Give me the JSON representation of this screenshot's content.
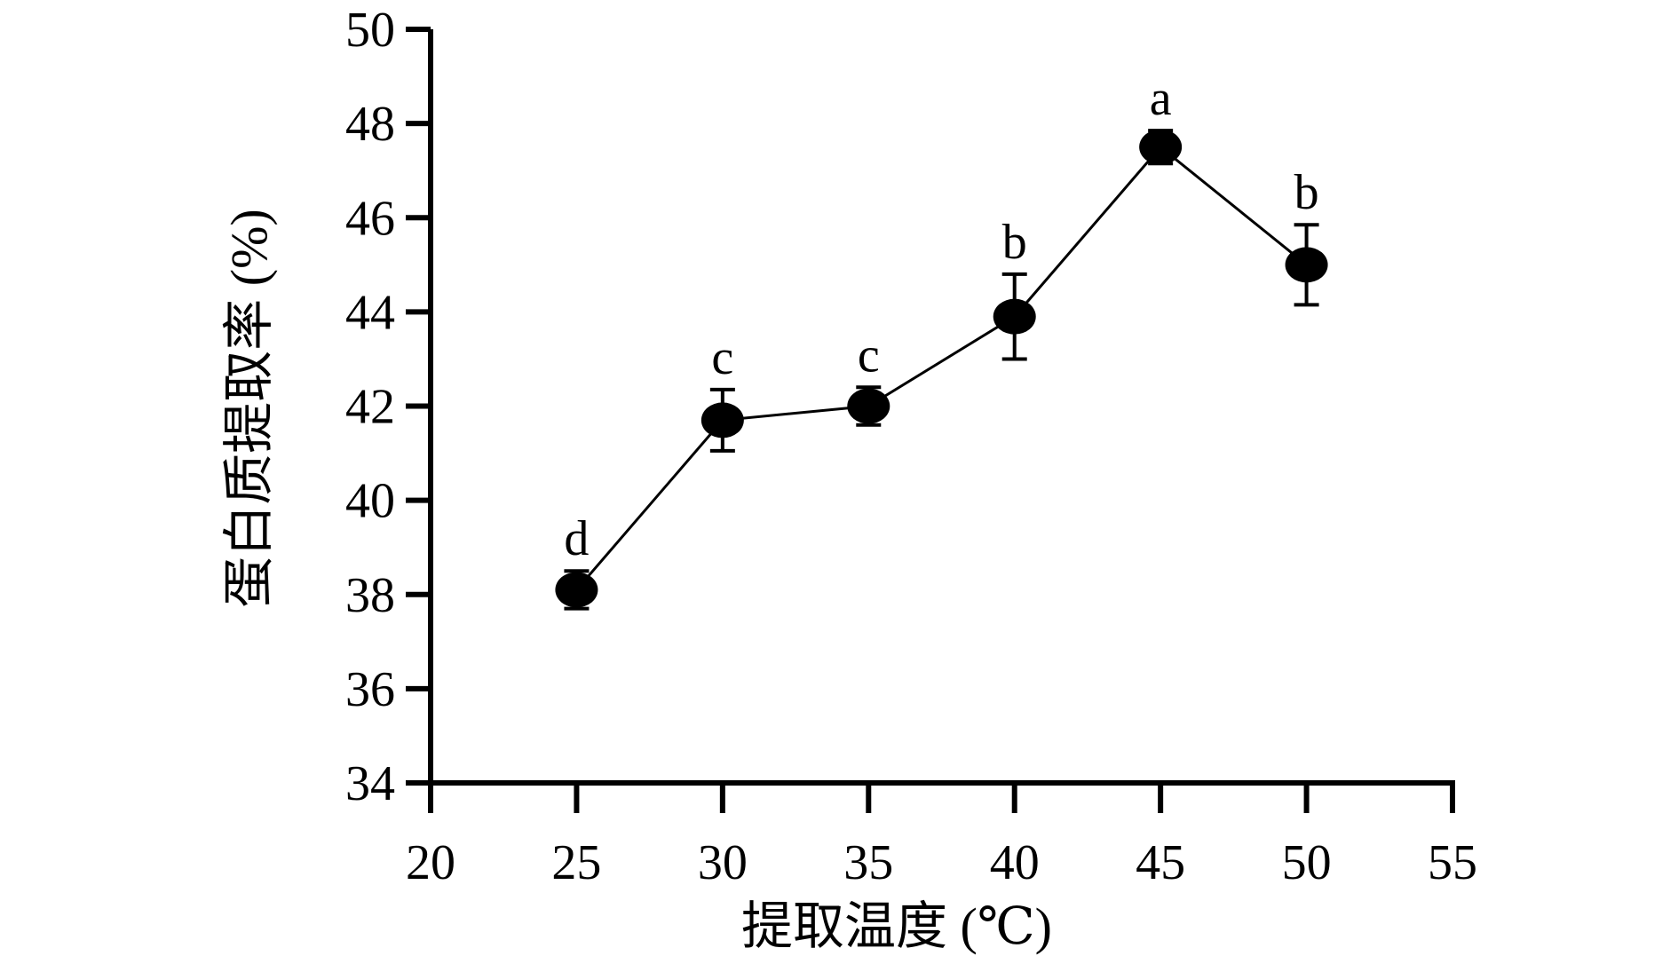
{
  "chart_data": {
    "type": "line",
    "title": "",
    "xlabel": "提取温度 (℃)",
    "ylabel": "蛋白质提取率 (%)",
    "xlim": [
      20,
      55
    ],
    "ylim": [
      34,
      50
    ],
    "xticks": [
      20,
      25,
      30,
      35,
      40,
      45,
      50,
      55
    ],
    "yticks": [
      34,
      36,
      38,
      40,
      42,
      44,
      46,
      48,
      50
    ],
    "grid": false,
    "legend": "none",
    "colors": {
      "line": "#000000",
      "marker": "#000000"
    },
    "series": [
      {
        "x": [
          25,
          30,
          35,
          40,
          45,
          50
        ],
        "y": [
          38.1,
          41.7,
          42.0,
          43.9,
          47.5,
          45.0
        ],
        "error": [
          0.4,
          0.65,
          0.4,
          0.9,
          0.35,
          0.85
        ],
        "labels": [
          "d",
          "c",
          "c",
          "b",
          "a",
          "b"
        ]
      }
    ]
  }
}
